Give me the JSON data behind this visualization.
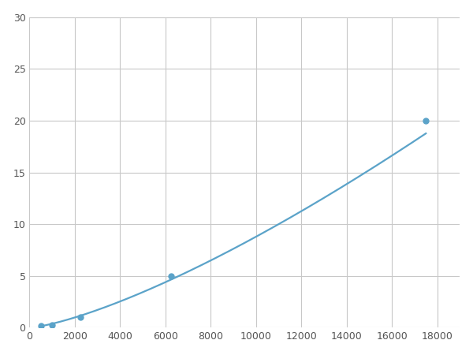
{
  "x_points": [
    500,
    1000,
    2250,
    6250,
    17500
  ],
  "y_points": [
    0.2,
    0.3,
    1.0,
    5.0,
    20.0
  ],
  "line_color": "#5ba3c9",
  "marker_color": "#5ba3c9",
  "marker_size": 5,
  "xlim": [
    0,
    19000
  ],
  "ylim": [
    0,
    30
  ],
  "xticks": [
    0,
    2000,
    4000,
    6000,
    8000,
    10000,
    12000,
    14000,
    16000,
    18000
  ],
  "yticks": [
    0,
    5,
    10,
    15,
    20,
    25,
    30
  ],
  "grid_color": "#c8c8c8",
  "background_color": "#ffffff",
  "line_width": 1.6
}
